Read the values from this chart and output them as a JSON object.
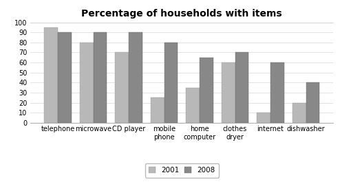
{
  "title": "Percentage of households with items",
  "categories": [
    "telephone",
    "microwave",
    "CD player",
    "mobile\nphone",
    "home\ncomputer",
    "clothes\ndryer",
    "internet",
    "dishwasher"
  ],
  "values_2001": [
    95,
    80,
    70,
    25,
    35,
    60,
    10,
    20
  ],
  "values_2008": [
    90,
    90,
    90,
    80,
    65,
    70,
    60,
    40
  ],
  "color_2001": "#b8b8b8",
  "color_2008": "#888888",
  "ylim": [
    0,
    100
  ],
  "yticks": [
    0,
    10,
    20,
    30,
    40,
    50,
    60,
    70,
    80,
    90,
    100
  ],
  "legend_labels": [
    "2001",
    "2008"
  ],
  "bar_width": 0.38,
  "title_fontsize": 10,
  "tick_fontsize": 7,
  "legend_fontsize": 7.5,
  "background_color": "#ffffff"
}
